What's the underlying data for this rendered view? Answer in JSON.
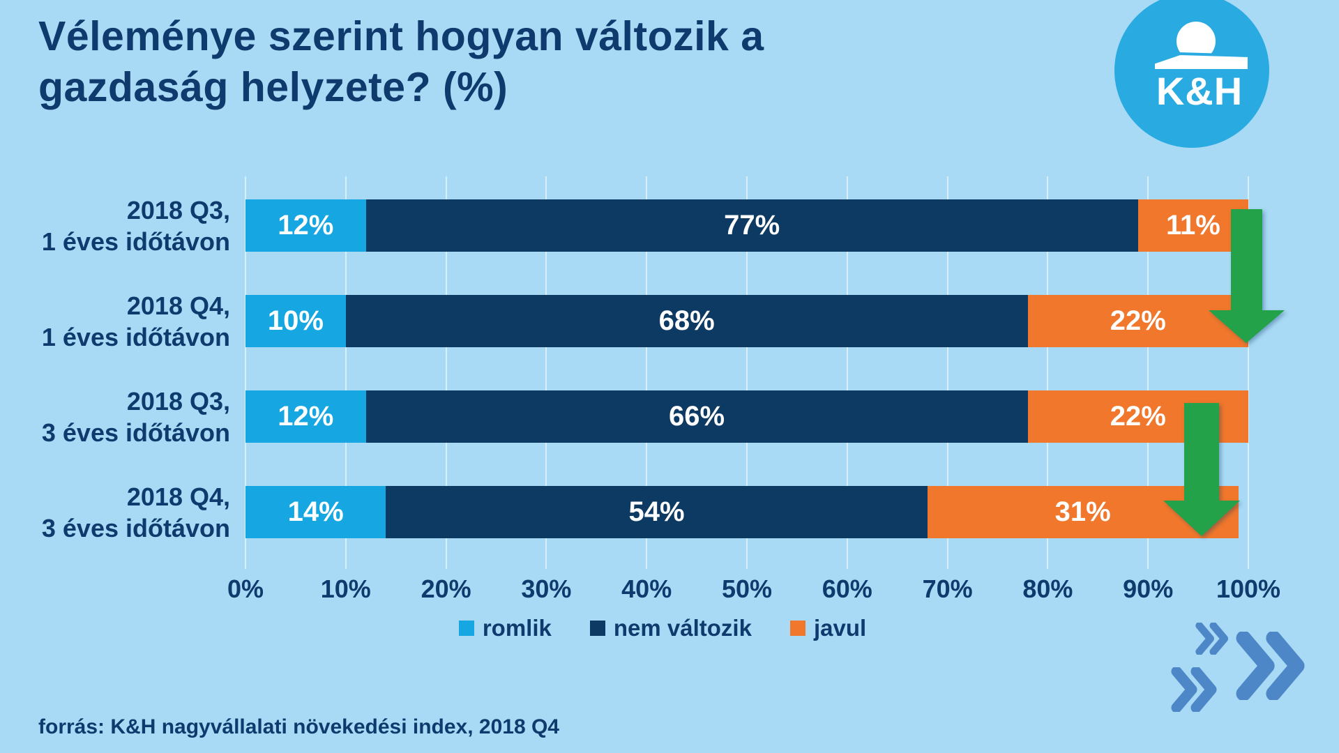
{
  "title_lines": [
    "Véleménye szerint hogyan változik a",
    "gazdaság helyzete? (%)"
  ],
  "logo": {
    "text": "K&H"
  },
  "chart_data": {
    "type": "bar",
    "orientation": "horizontal",
    "stacked": true,
    "unit": "%",
    "categories": [
      [
        "2018 Q3,",
        "1 éves időtávon"
      ],
      [
        "2018 Q4,",
        "1 éves időtávon"
      ],
      [
        "2018 Q3,",
        "3 éves időtávon"
      ],
      [
        "2018 Q4,",
        "3 éves időtávon"
      ]
    ],
    "series": [
      {
        "name": "romlik",
        "color": "#16a7e3",
        "values": [
          12,
          10,
          12,
          14
        ]
      },
      {
        "name": "nem változik",
        "color": "#0d3a63",
        "values": [
          77,
          68,
          66,
          54
        ]
      },
      {
        "name": "javul",
        "color": "#f0772b",
        "values": [
          11,
          22,
          22,
          31
        ]
      }
    ],
    "x_ticks": [
      "0%",
      "10%",
      "20%",
      "30%",
      "40%",
      "50%",
      "60%",
      "70%",
      "80%",
      "90%",
      "100%"
    ],
    "xlim": [
      0,
      100
    ],
    "grid": "vertical",
    "legend_position": "bottom",
    "annotations": [
      {
        "type": "arrow-down",
        "color": "#24a249",
        "spans_rows": [
          0,
          1
        ]
      },
      {
        "type": "arrow-down",
        "color": "#24a249",
        "spans_rows": [
          2,
          3
        ]
      }
    ]
  },
  "source": "forrás: K&H nagyvállalati növekedési index, 2018 Q4",
  "colors": {
    "background": "#a8daf5",
    "text_navy": "#0f3a6d",
    "bar_value_text": "#ffffff",
    "logo_blue": "#29abe2",
    "gridline": "rgba(255,255,255,0.55)",
    "arrow_green": "#24a249",
    "chevron_blue": "#4d87c8"
  }
}
